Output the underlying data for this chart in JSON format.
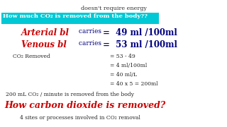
{
  "bg_color": "#ffffff",
  "top_text": "doesn't require energy",
  "highlight_text": "How much CO₂ is removed from the body??",
  "highlight_bg": "#00c8d4",
  "highlight_color": "#ffffff",
  "arterial_label": "Arterial bl",
  "arterial_label_color": "#cc0000",
  "arterial_carries": " carries",
  "arterial_value": "  =  49 ml /100ml",
  "arterial_color": "#000080",
  "venous_label": "Venous bl",
  "venous_label_color": "#cc0000",
  "venous_carries": " carries",
  "venous_value": "  =  53 ml /100ml",
  "venous_color": "#000080",
  "co2_label": "CO₂ Removed",
  "co2_calc_lines": [
    "= 53 - 49",
    "= 4 ml/100ml",
    "= 40 ml/L",
    "= 40 x 5 = 200ml"
  ],
  "bottom_text1": "200 mL CO₂ / minute is removed from the body",
  "bottom_heading": "How carbon dioxide is removed?",
  "bottom_heading_color": "#cc0000",
  "bottom_sub": "4 sites or processes involved in CO₂ removal"
}
